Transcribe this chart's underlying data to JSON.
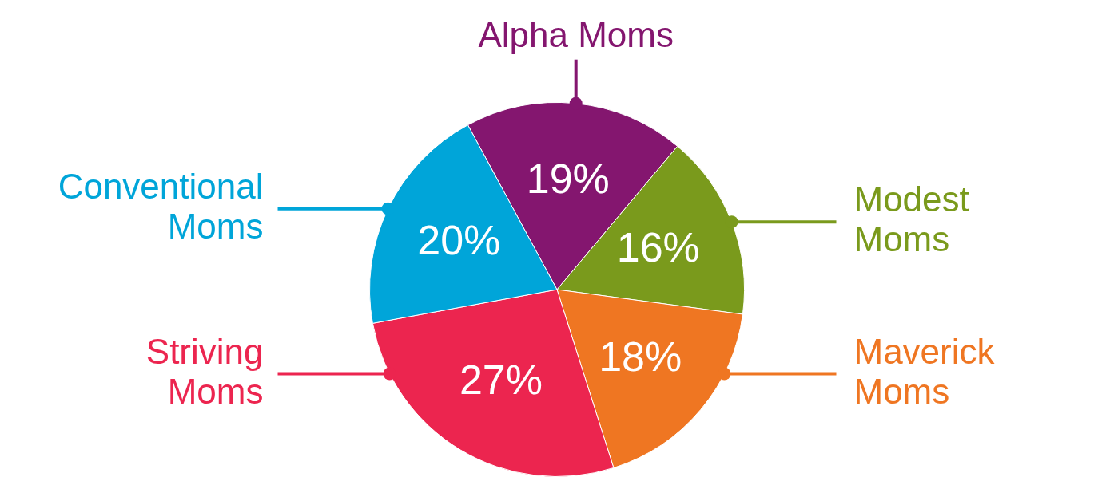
{
  "chart_data": {
    "type": "pie",
    "categories": [
      "Alpha Moms",
      "Modest Moms",
      "Maverick Moms",
      "Striving Moms",
      "Conventional Moms"
    ],
    "values": [
      19,
      16,
      18,
      27,
      20
    ],
    "value_labels": [
      "19%",
      "16%",
      "18%",
      "27%",
      "20%"
    ],
    "colors": [
      "#84166f",
      "#7a9a1c",
      "#ef7622",
      "#ec254f",
      "#00a5d9"
    ],
    "legend": false
  }
}
